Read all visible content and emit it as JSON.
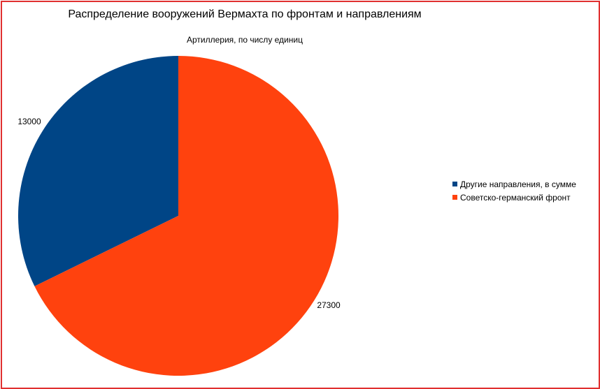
{
  "chart_data": {
    "type": "pie",
    "title": "Распределение вооружений Вермахта по фронтам и направлениям",
    "subtitle": "Артиллерия, по числу единиц",
    "slices": [
      {
        "label": "Другие направления, в сумме",
        "value": 13000,
        "value_label": "13000",
        "color": "#004586"
      },
      {
        "label": "Советско-германский фронт",
        "value": 27300,
        "value_label": "27300",
        "color": "#ff420e"
      }
    ],
    "legend": "right",
    "start_angle_deg": 0,
    "direction": "counterclockwise"
  },
  "colors": {
    "frame": "#e03030"
  }
}
